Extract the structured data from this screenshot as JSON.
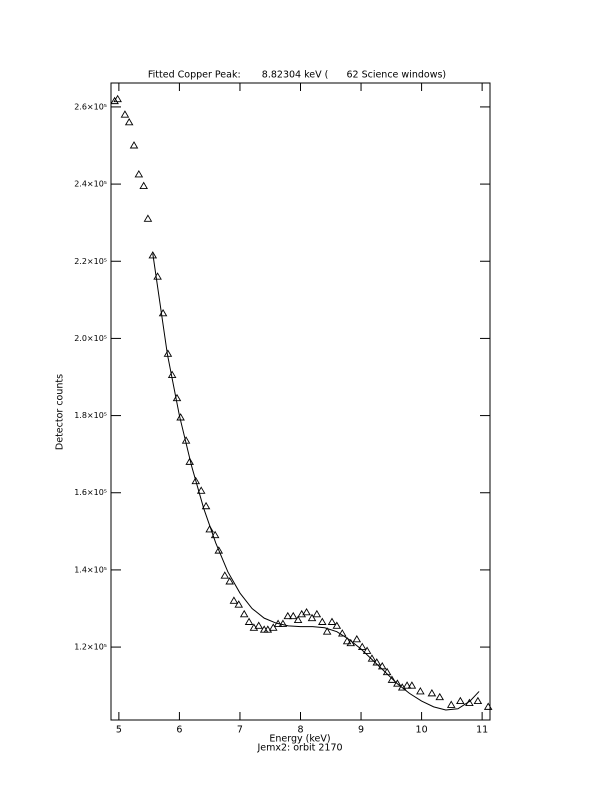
{
  "chart_data": {
    "type": "scatter",
    "title": "Fitted Copper Peak:       8.82304 keV (      62 Science windows)",
    "x_label": "Energy (keV)",
    "subtitle": "Jemx2: orbit 2170",
    "y_label": "Detector counts",
    "xlim": [
      4.87,
      11.13
    ],
    "ylim": [
      101100,
      266200
    ],
    "xticks": [
      5,
      6,
      7,
      8,
      9,
      10,
      11
    ],
    "yticks": [
      {
        "value": 120000,
        "label": "1.2×10⁵"
      },
      {
        "value": 140000,
        "label": "1.4×10⁵"
      },
      {
        "value": 160000,
        "label": "1.6×10⁵"
      },
      {
        "value": 180000,
        "label": "1.8×10⁵"
      },
      {
        "value": 200000,
        "label": "2.0×10⁵"
      },
      {
        "value": 220000,
        "label": "2.2×10⁵"
      },
      {
        "value": 240000,
        "label": "2.4×10⁵"
      },
      {
        "value": 260000,
        "label": "2.6×10⁵"
      }
    ],
    "series": [
      {
        "mode": "markers",
        "marker": "triangle",
        "color": "#000000",
        "x": [
          4.93,
          4.98,
          5.1,
          5.17,
          5.25,
          5.33,
          5.41,
          5.48,
          5.56,
          5.64,
          5.73,
          5.81,
          5.88,
          5.96,
          6.02,
          6.11,
          6.17,
          6.27,
          6.36,
          6.44,
          6.5,
          6.59,
          6.65,
          6.75,
          6.83,
          6.9,
          6.98,
          7.07,
          7.15,
          7.23,
          7.31,
          7.4,
          7.46,
          7.55,
          7.63,
          7.71,
          7.79,
          7.88,
          7.96,
          8.02,
          8.1,
          8.19,
          8.27,
          8.36,
          8.44,
          8.52,
          8.6,
          8.69,
          8.77,
          8.83,
          8.93,
          9.02,
          9.1,
          9.18,
          9.26,
          9.35,
          9.43,
          9.51,
          9.6,
          9.68,
          9.76,
          9.84,
          9.98,
          10.17,
          10.3,
          10.49,
          10.64,
          10.79,
          10.93,
          11.1
        ],
        "values": [
          261500,
          262000,
          258000,
          256000,
          250000,
          242500,
          239500,
          231000,
          221500,
          216000,
          206500,
          196000,
          190500,
          184500,
          179500,
          173500,
          168000,
          163000,
          160500,
          156500,
          150500,
          149000,
          145000,
          138500,
          137000,
          132000,
          131000,
          128500,
          126500,
          125000,
          125500,
          124500,
          124500,
          125000,
          126000,
          126000,
          128000,
          128000,
          127000,
          128500,
          129000,
          127500,
          128500,
          126500,
          124000,
          126500,
          125500,
          123500,
          121500,
          121000,
          122000,
          120000,
          119000,
          117000,
          116000,
          115000,
          113500,
          111500,
          110500,
          109500,
          110000,
          110000,
          108500,
          108000,
          107000,
          105000,
          106000,
          105500,
          106000,
          104500
        ]
      },
      {
        "mode": "line",
        "color": "#000000",
        "x": [
          5.56,
          5.8,
          6.0,
          6.2,
          6.4,
          6.6,
          6.8,
          7.0,
          7.2,
          7.4,
          7.6,
          7.8,
          8.0,
          8.2,
          8.4,
          8.6,
          8.8,
          9.0,
          9.2,
          9.4,
          9.6,
          9.8,
          10.0,
          10.2,
          10.4,
          10.6,
          10.8,
          10.95
        ],
        "values": [
          222000,
          196000,
          180000,
          167000,
          156000,
          147000,
          139500,
          134000,
          130000,
          127500,
          126200,
          125500,
          125300,
          125300,
          125000,
          124000,
          122000,
          119500,
          116500,
          113500,
          110500,
          108000,
          106000,
          104500,
          103700,
          104000,
          106000,
          108500
        ]
      }
    ]
  }
}
